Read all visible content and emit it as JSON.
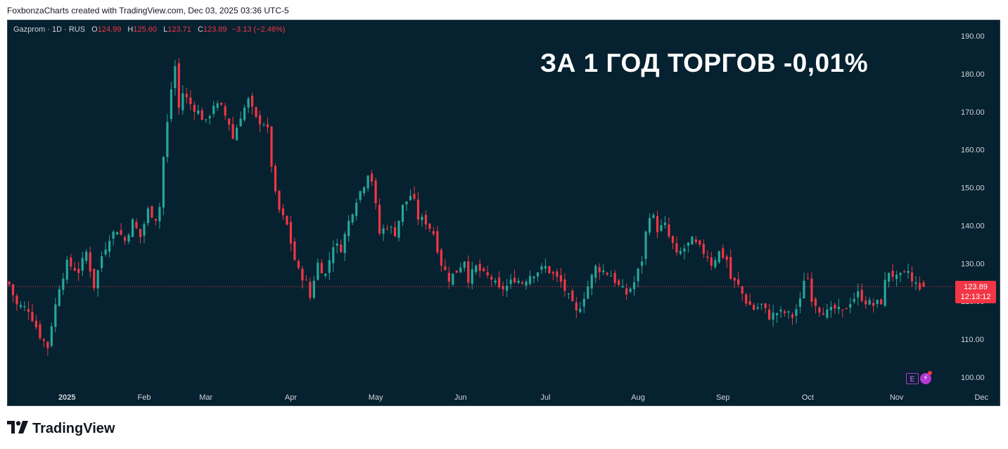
{
  "header": {
    "caption": "FoxbonzaCharts created with TradingView.com, Dec 03, 2025 03:36 UTC-5"
  },
  "legend": {
    "symbol": "Gazprom · 1D · RUS",
    "open_label": "O",
    "open": "124.99",
    "high_label": "H",
    "high": "125.60",
    "low_label": "L",
    "low": "123.71",
    "close_label": "C",
    "close": "123.89",
    "change": "−3.13 (−2.46%)"
  },
  "headline": "ЗА 1 ГОД ТОРГОВ -0,01%",
  "price_tag": {
    "price": "123.89",
    "countdown": "12:13:12"
  },
  "badges": {
    "earnings": "E",
    "flash": "⚡"
  },
  "footer": {
    "logo_text": "TradingView",
    "logo_icon": "tradingview-logo-icon"
  },
  "colors": {
    "background": "#06212f",
    "up": "#26a69a",
    "down": "#f23645",
    "axis_text": "#d1d4dc"
  },
  "chart_data": {
    "type": "candlestick",
    "title": "",
    "yticks": [
      "190.00",
      "180.00",
      "170.00",
      "160.00",
      "150.00",
      "140.00",
      "130.00",
      "120.00",
      "110.00",
      "100.00"
    ],
    "ylim": [
      96,
      196
    ],
    "xticks": [
      {
        "label": "2025",
        "index": 15
      },
      {
        "label": "Feb",
        "index": 35
      },
      {
        "label": "Mar",
        "index": 51
      },
      {
        "label": "Apr",
        "index": 73
      },
      {
        "label": "May",
        "index": 95
      },
      {
        "label": "Jun",
        "index": 117
      },
      {
        "label": "Jul",
        "index": 139
      },
      {
        "label": "Aug",
        "index": 163
      },
      {
        "label": "Sep",
        "index": 185
      },
      {
        "label": "Oct",
        "index": 207
      },
      {
        "label": "Nov",
        "index": 230
      },
      {
        "label": "Dec",
        "index": 252
      }
    ],
    "current_price": 123.89,
    "anchors": [
      [
        0,
        124.5
      ],
      [
        2,
        119
      ],
      [
        5,
        118
      ],
      [
        8,
        111
      ],
      [
        10,
        108
      ],
      [
        11,
        114
      ],
      [
        13,
        124
      ],
      [
        15,
        130
      ],
      [
        18,
        128
      ],
      [
        20,
        133
      ],
      [
        22,
        124
      ],
      [
        24,
        132
      ],
      [
        26,
        137
      ],
      [
        28,
        139
      ],
      [
        30,
        136
      ],
      [
        32,
        141
      ],
      [
        34,
        137
      ],
      [
        36,
        144
      ],
      [
        38,
        142
      ],
      [
        39,
        145
      ],
      [
        40,
        158
      ],
      [
        41,
        167
      ],
      [
        42,
        176
      ],
      [
        43,
        182
      ],
      [
        44,
        171
      ],
      [
        45,
        175
      ],
      [
        47,
        172
      ],
      [
        49,
        170
      ],
      [
        51,
        167
      ],
      [
        53,
        172
      ],
      [
        55,
        171
      ],
      [
        57,
        167
      ],
      [
        58,
        163
      ],
      [
        60,
        169
      ],
      [
        62,
        173
      ],
      [
        64,
        168
      ],
      [
        66,
        167
      ],
      [
        67,
        165
      ],
      [
        68,
        156
      ],
      [
        69,
        148
      ],
      [
        70,
        144
      ],
      [
        72,
        140
      ],
      [
        74,
        131
      ],
      [
        75,
        128
      ],
      [
        77,
        125
      ],
      [
        78,
        121
      ],
      [
        79,
        126
      ],
      [
        80,
        130
      ],
      [
        82,
        127
      ],
      [
        84,
        135
      ],
      [
        86,
        134
      ],
      [
        88,
        141
      ],
      [
        90,
        147
      ],
      [
        92,
        151
      ],
      [
        93,
        154
      ],
      [
        94,
        152
      ],
      [
        95,
        145
      ],
      [
        96,
        138
      ],
      [
        98,
        140
      ],
      [
        100,
        138
      ],
      [
        102,
        145
      ],
      [
        104,
        148
      ],
      [
        105,
        146
      ],
      [
        106,
        142
      ],
      [
        108,
        141
      ],
      [
        110,
        138
      ],
      [
        112,
        130
      ],
      [
        114,
        126
      ],
      [
        116,
        128
      ],
      [
        118,
        131
      ],
      [
        119,
        126
      ],
      [
        121,
        129
      ],
      [
        123,
        127
      ],
      [
        125,
        126
      ],
      [
        127,
        123
      ],
      [
        129,
        124
      ],
      [
        131,
        126
      ],
      [
        133,
        125
      ],
      [
        135,
        127
      ],
      [
        137,
        128
      ],
      [
        139,
        129
      ],
      [
        141,
        127
      ],
      [
        143,
        125
      ],
      [
        145,
        121
      ],
      [
        147,
        117
      ],
      [
        148,
        119
      ],
      [
        150,
        124
      ],
      [
        152,
        129
      ],
      [
        154,
        128
      ],
      [
        156,
        127
      ],
      [
        158,
        124
      ],
      [
        160,
        122
      ],
      [
        162,
        125
      ],
      [
        164,
        131
      ],
      [
        165,
        138
      ],
      [
        166,
        143
      ],
      [
        167,
        142
      ],
      [
        168,
        139
      ],
      [
        170,
        140
      ],
      [
        171,
        137
      ],
      [
        172,
        135
      ],
      [
        173,
        132
      ],
      [
        175,
        134
      ],
      [
        177,
        136
      ],
      [
        179,
        134
      ],
      [
        181,
        132
      ],
      [
        182,
        130
      ],
      [
        184,
        133
      ],
      [
        186,
        131
      ],
      [
        187,
        126
      ],
      [
        189,
        124
      ],
      [
        191,
        120
      ],
      [
        193,
        118
      ],
      [
        195,
        119
      ],
      [
        197,
        116
      ],
      [
        199,
        117
      ],
      [
        201,
        117
      ],
      [
        203,
        116
      ],
      [
        205,
        120
      ],
      [
        206,
        126
      ],
      [
        207,
        126
      ],
      [
        208,
        121
      ],
      [
        210,
        118
      ],
      [
        212,
        117
      ],
      [
        214,
        118
      ],
      [
        216,
        117
      ],
      [
        218,
        120
      ],
      [
        220,
        122
      ],
      [
        222,
        120
      ],
      [
        224,
        119
      ],
      [
        226,
        120
      ],
      [
        227,
        125
      ],
      [
        228,
        128
      ],
      [
        230,
        126
      ],
      [
        232,
        127
      ],
      [
        233,
        128
      ],
      [
        234,
        125
      ],
      [
        236,
        124
      ],
      [
        237,
        123.89
      ]
    ]
  }
}
